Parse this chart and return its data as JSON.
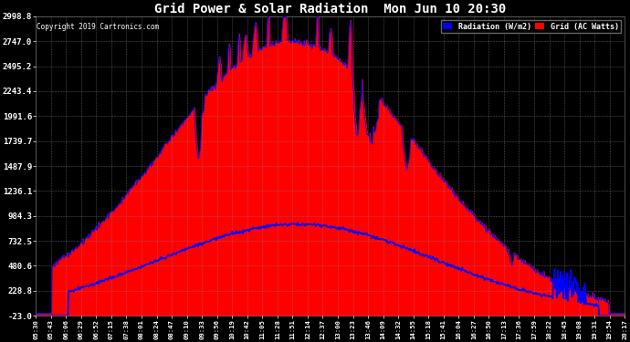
{
  "title": "Grid Power & Solar Radiation  Mon Jun 10 20:30",
  "copyright": "Copyright 2019 Cartronics.com",
  "background_color": "#000000",
  "plot_bg_color": "#000000",
  "grid_color": "#888888",
  "title_color": "#ffffff",
  "yticks": [
    2998.8,
    2747.0,
    2495.2,
    2243.4,
    1991.6,
    1739.7,
    1487.9,
    1236.1,
    984.3,
    732.5,
    480.6,
    228.8,
    -23.0
  ],
  "ymin": -23.0,
  "ymax": 2998.8,
  "radiation_color": "#ff0000",
  "radiation_line_color": "#0000ff",
  "grid_power_color": "#0000ff",
  "legend_radiation_bg": "#0000ff",
  "legend_grid_bg": "#ff0000",
  "xtick_labels": [
    "05:30",
    "05:43",
    "06:06",
    "06:29",
    "06:52",
    "07:15",
    "07:38",
    "08:01",
    "08:24",
    "08:47",
    "09:10",
    "09:33",
    "09:56",
    "10:19",
    "10:42",
    "11:05",
    "11:28",
    "11:51",
    "12:14",
    "12:37",
    "13:00",
    "13:23",
    "13:46",
    "14:09",
    "14:32",
    "14:55",
    "15:18",
    "15:41",
    "16:04",
    "16:27",
    "16:50",
    "17:13",
    "17:36",
    "17:59",
    "18:22",
    "18:45",
    "19:08",
    "19:31",
    "19:54",
    "20:17"
  ]
}
